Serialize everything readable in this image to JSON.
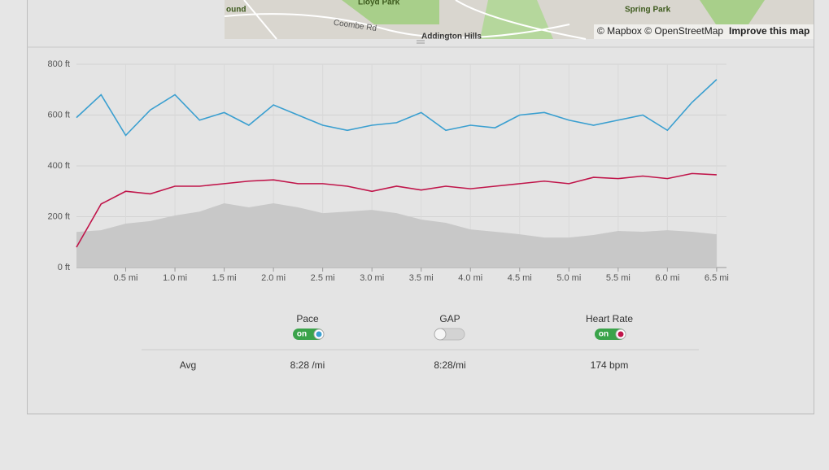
{
  "map": {
    "labels": [
      "ound",
      "Lloyd Park",
      "Coombe Rd",
      "Addington Hills",
      "Spring Park"
    ],
    "attribution": "© Mapbox © OpenStreetMap",
    "improve_link": "Improve this map"
  },
  "chart_data": {
    "type": "line",
    "x": [
      0,
      0.25,
      0.5,
      0.75,
      1.0,
      1.25,
      1.5,
      1.75,
      2.0,
      2.25,
      2.5,
      2.75,
      3.0,
      3.25,
      3.5,
      3.75,
      4.0,
      4.25,
      4.5,
      4.75,
      5.0,
      5.25,
      5.5,
      5.75,
      6.0,
      6.25,
      6.5
    ],
    "series": [
      {
        "color": "#c8c8c8",
        "fill": true,
        "values": [
          140,
          147,
          173,
          183,
          205,
          220,
          253,
          237,
          253,
          237,
          214,
          220,
          227,
          214,
          189,
          176,
          150,
          141,
          131,
          118,
          118,
          128,
          144,
          141,
          147,
          141,
          131
        ]
      },
      {
        "color": "#3a9fd0",
        "values": [
          590,
          680,
          520,
          620,
          680,
          580,
          610,
          560,
          640,
          600,
          560,
          540,
          560,
          570,
          610,
          540,
          560,
          550,
          600,
          610,
          580,
          560,
          580,
          600,
          540,
          650,
          740
        ]
      },
      {
        "color": "#c0154a",
        "values": [
          80,
          250,
          300,
          290,
          320,
          320,
          330,
          340,
          345,
          330,
          330,
          320,
          300,
          320,
          305,
          320,
          310,
          320,
          330,
          340,
          330,
          355,
          350,
          360,
          350,
          370,
          365
        ]
      }
    ],
    "xlim": [
      0,
      6.6
    ],
    "ylim": [
      0,
      800
    ],
    "yticks": [
      {
        "value": 0,
        "label": "0 ft"
      },
      {
        "value": 200,
        "label": "200 ft"
      },
      {
        "value": 400,
        "label": "400 ft"
      },
      {
        "value": 600,
        "label": "600 ft"
      },
      {
        "value": 800,
        "label": "800 ft"
      }
    ],
    "xticks": [
      {
        "value": 0.5,
        "label": "0.5 mi"
      },
      {
        "value": 1.0,
        "label": "1.0 mi"
      },
      {
        "value": 1.5,
        "label": "1.5 mi"
      },
      {
        "value": 2.0,
        "label": "2.0 mi"
      },
      {
        "value": 2.5,
        "label": "2.5 mi"
      },
      {
        "value": 3.0,
        "label": "3.0 mi"
      },
      {
        "value": 3.5,
        "label": "3.5 mi"
      },
      {
        "value": 4.0,
        "label": "4.0 mi"
      },
      {
        "value": 4.5,
        "label": "4.5 mi"
      },
      {
        "value": 5.0,
        "label": "5.0 mi"
      },
      {
        "value": 5.5,
        "label": "5.5 mi"
      },
      {
        "value": 6.0,
        "label": "6.0 mi"
      },
      {
        "value": 6.5,
        "label": "6.5 mi"
      }
    ],
    "grid": true
  },
  "toggles": [
    {
      "label": "Pace",
      "state": "on",
      "color": "#3a9fd0"
    },
    {
      "label": "GAP",
      "state": "",
      "color": ""
    },
    {
      "label": "Heart Rate",
      "state": "on",
      "color": "#c0154a"
    }
  ],
  "averages": {
    "label": "Avg",
    "values": [
      "8:28 /mi",
      "8:28/mi",
      "174 bpm"
    ]
  }
}
